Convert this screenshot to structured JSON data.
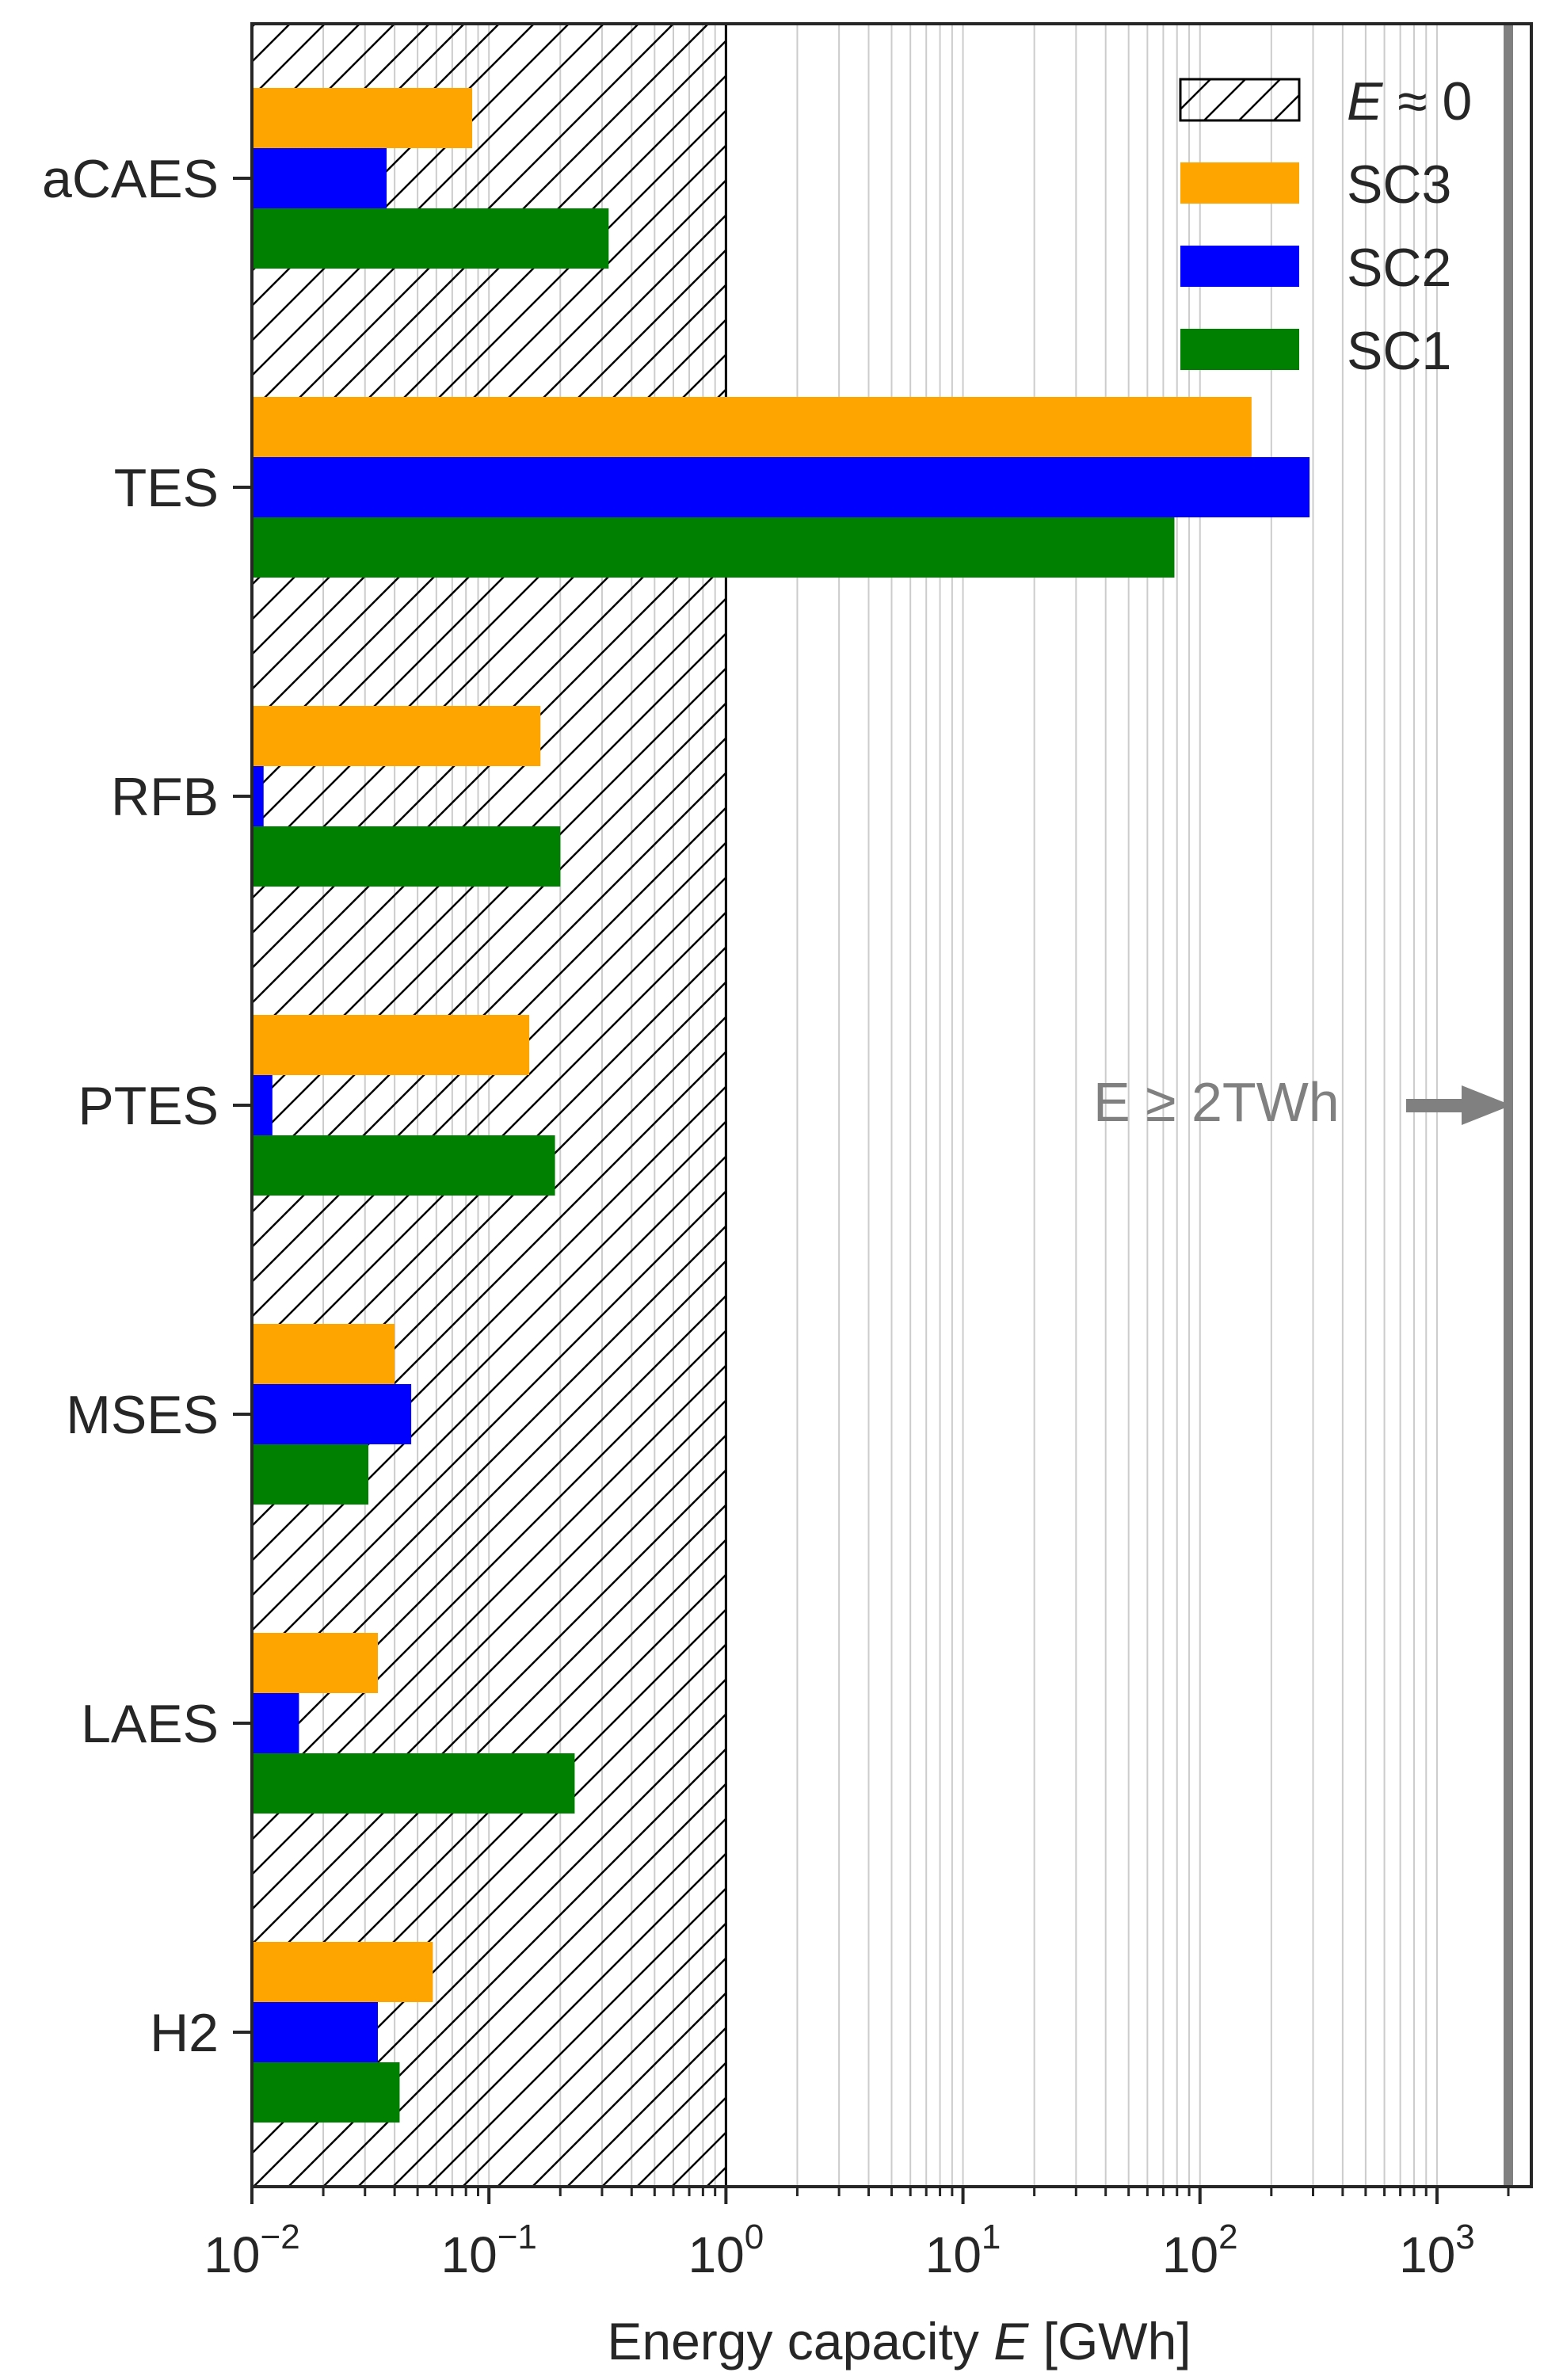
{
  "chart_data": {
    "type": "bar",
    "orientation": "horizontal",
    "xscale": "log",
    "xlabel": "Energy capacity E [GWh]",
    "xlim": [
      0.01,
      2500
    ],
    "x_ticks": [
      {
        "value": 0.01,
        "base": "10",
        "exp": "−2"
      },
      {
        "value": 0.1,
        "base": "10",
        "exp": "−1"
      },
      {
        "value": 1,
        "base": "10",
        "exp": "0"
      },
      {
        "value": 10,
        "base": "10",
        "exp": "1"
      },
      {
        "value": 100,
        "base": "10",
        "exp": "2"
      },
      {
        "value": 1000,
        "base": "10",
        "exp": "3"
      }
    ],
    "categories": [
      "aCAES",
      "TES",
      "RFB",
      "PTES",
      "MSES",
      "LAES",
      "H2"
    ],
    "series": [
      {
        "name": "SC3",
        "color": "#ffa500",
        "values": [
          0.085,
          165,
          0.165,
          0.148,
          0.04,
          0.034,
          0.058
        ]
      },
      {
        "name": "SC2",
        "color": "#0000ff",
        "values": [
          0.037,
          290,
          0.0112,
          0.0122,
          0.047,
          0.0158,
          0.034
        ]
      },
      {
        "name": "SC1",
        "color": "#008000",
        "values": [
          0.32,
          78,
          0.2,
          0.19,
          0.031,
          0.23,
          0.042
        ]
      }
    ],
    "hatched_region": {
      "label_italic": "E",
      "label_rest": " ≈ 0",
      "from": 0.01,
      "to": 1
    },
    "limit_line": {
      "value": 2000,
      "color": "#808080"
    },
    "annotation": {
      "text": "E  ≥  2TWh",
      "color": "#808080"
    },
    "legend_placement": "top-right",
    "grid": "x-minor"
  },
  "colors": {
    "hatch": "#000000",
    "grid": "#cccccc",
    "axis": "#262626",
    "limit": "#808080"
  }
}
